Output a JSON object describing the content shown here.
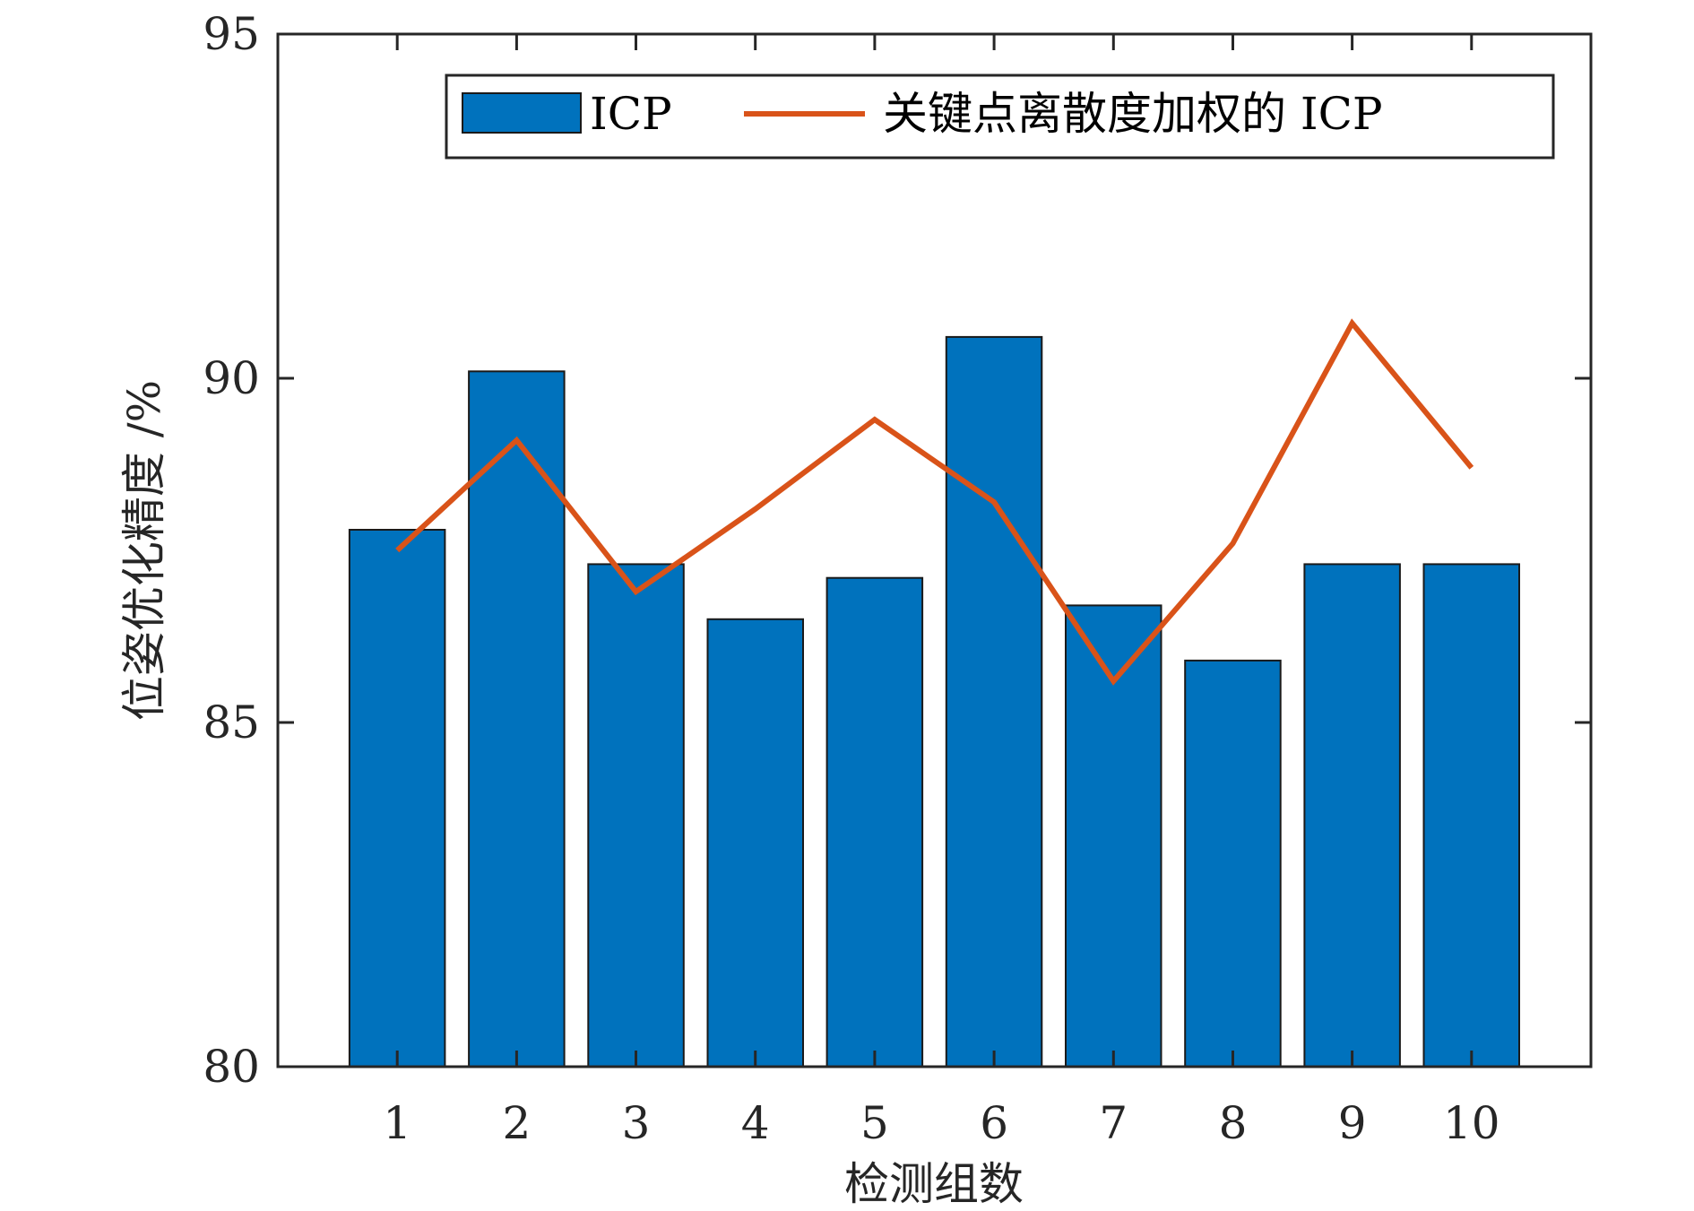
{
  "chart_data": {
    "type": "bar",
    "categories": [
      "1",
      "2",
      "3",
      "4",
      "5",
      "6",
      "7",
      "8",
      "9",
      "10"
    ],
    "series": [
      {
        "name": "ICP",
        "kind": "bar",
        "color": "#0072BD",
        "values": [
          87.8,
          90.1,
          87.3,
          86.5,
          87.1,
          90.6,
          86.7,
          85.9,
          87.3,
          87.3
        ]
      },
      {
        "name": "关键点离散度加权的 ICP",
        "kind": "line",
        "color": "#D95319",
        "values": [
          87.5,
          89.1,
          86.9,
          88.1,
          89.4,
          88.2,
          85.6,
          87.6,
          90.8,
          88.7
        ]
      }
    ],
    "xlabel": "检测组数",
    "ylabel": "位姿优化精度 /%",
    "ylim": [
      80,
      95
    ],
    "yticks": [
      "80",
      "85",
      "90",
      "95"
    ],
    "legend_position": "top-right",
    "grid": false
  }
}
